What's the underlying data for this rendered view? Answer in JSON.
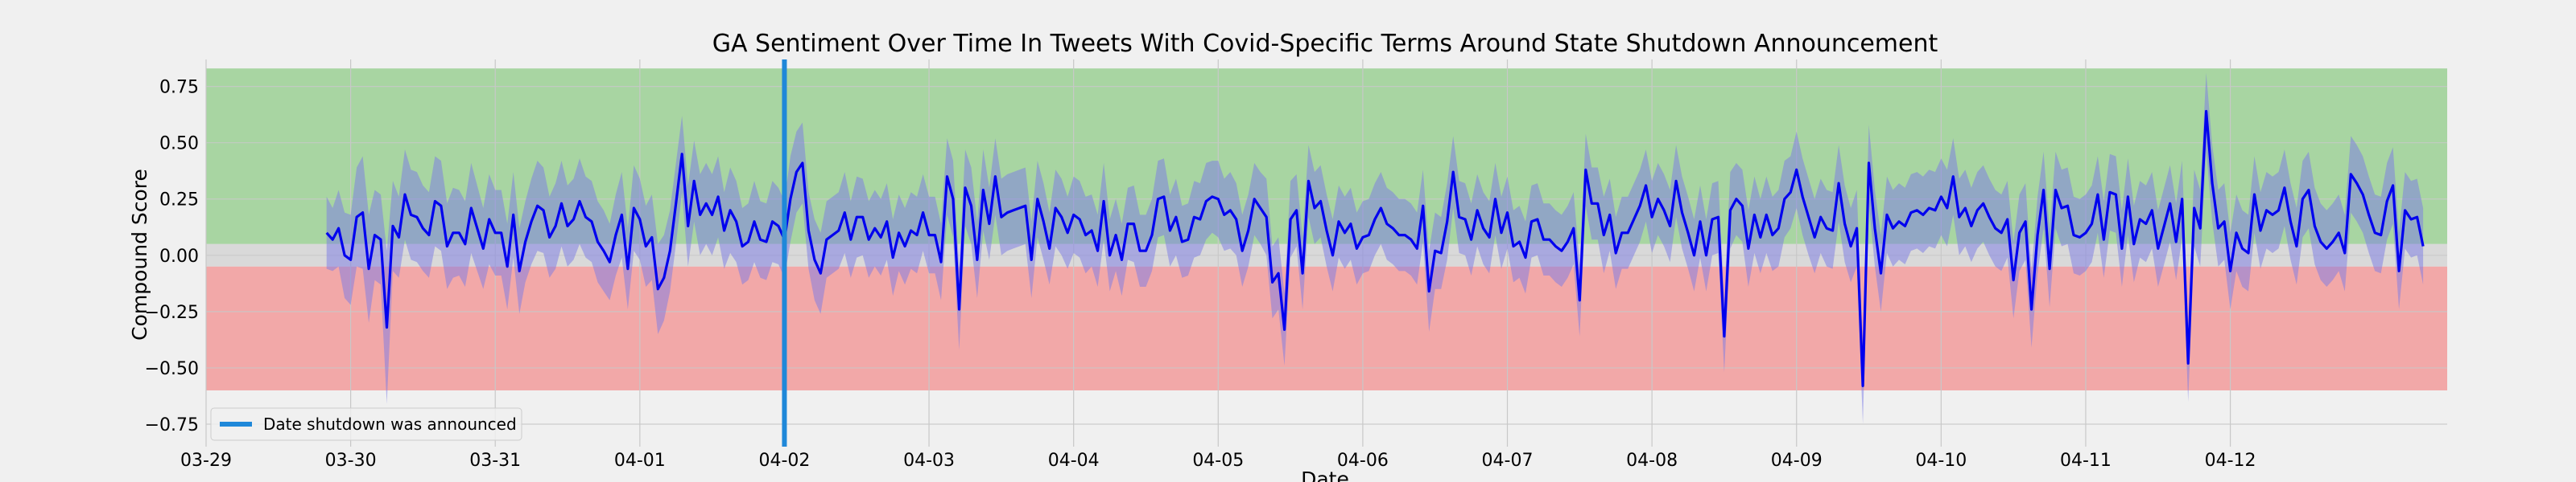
{
  "chart_data": {
    "type": "line",
    "title": "GA Sentiment Over Time In Tweets With Covid-Specific Terms Around State Shutdown Announcement",
    "xlabel": "Date",
    "ylabel": "Compound Score",
    "x_tick_labels": [
      "03-29",
      "03-30",
      "03-31",
      "04-01",
      "04-02",
      "04-03",
      "04-04",
      "04-05",
      "04-06",
      "04-07",
      "04-08",
      "04-09",
      "04-10",
      "04-11",
      "04-12"
    ],
    "y_ticks": [
      0.75,
      0.5,
      0.25,
      0.0,
      -0.25,
      -0.5,
      -0.75
    ],
    "y_tick_labels": [
      "0.75",
      "0.50",
      "0.25",
      "0.00",
      "−0.25",
      "−0.50",
      "−0.75"
    ],
    "xlim": [
      "03-29 00:00",
      "04-13 12:00"
    ],
    "ylim": [
      -0.85,
      0.87
    ],
    "grid": true,
    "bands": [
      {
        "name": "positive",
        "y_from": 0.05,
        "y_to": 0.83,
        "color": "#a8d5a2"
      },
      {
        "name": "neutral",
        "y_from": -0.05,
        "y_to": 0.05,
        "color": "#d9d9d9"
      },
      {
        "name": "negative",
        "y_from": -0.6,
        "y_to": -0.05,
        "color": "#f2a8a8"
      }
    ],
    "vline": {
      "x": "04-02 00:00",
      "label": "Date shutdown was announced",
      "color": "#1f88d9"
    },
    "legend": {
      "position": "lower-left",
      "entries": [
        "Date shutdown was announced"
      ]
    },
    "series": [
      {
        "line_color": "#0000ee",
        "band_color": "#7a7ae6",
        "x_start": "03-29 20:00",
        "x_end": "04-12 20:00",
        "interval_hours": 1,
        "values": [
          0.1,
          0.07,
          0.12,
          0.0,
          -0.02,
          0.17,
          0.19,
          -0.06,
          0.09,
          0.07,
          -0.32,
          0.13,
          0.08,
          0.27,
          0.18,
          0.17,
          0.12,
          0.09,
          0.24,
          0.22,
          0.04,
          0.1,
          0.1,
          0.05,
          0.21,
          0.12,
          0.03,
          0.16,
          0.1,
          0.1,
          -0.05,
          0.18,
          -0.07,
          0.06,
          0.15,
          0.22,
          0.2,
          0.08,
          0.13,
          0.23,
          0.13,
          0.16,
          0.24,
          0.17,
          0.15,
          0.06,
          0.02,
          -0.03,
          0.09,
          0.18,
          -0.06,
          0.21,
          0.16,
          0.04,
          0.08,
          -0.15,
          -0.1,
          0.02,
          0.23,
          0.45,
          0.13,
          0.33,
          0.18,
          0.23,
          0.18,
          0.26,
          0.11,
          0.2,
          0.15,
          0.04,
          0.06,
          0.15,
          0.07,
          0.06,
          0.15,
          0.13,
          0.07,
          0.25,
          0.37,
          0.41,
          0.11,
          -0.02,
          -0.08,
          0.07,
          0.09,
          0.11,
          0.19,
          0.07,
          0.17,
          0.17,
          0.07,
          0.12,
          0.08,
          0.15,
          -0.01,
          0.1,
          0.04,
          0.11,
          0.09,
          0.19,
          0.09,
          0.09,
          -0.03,
          0.35,
          0.25,
          -0.24,
          0.3,
          0.22,
          -0.02,
          0.29,
          0.14,
          0.35,
          0.17,
          0.19,
          0.2,
          0.21,
          0.22,
          -0.02,
          0.25,
          0.15,
          0.03,
          0.21,
          0.17,
          0.1,
          0.18,
          0.16,
          0.09,
          0.11,
          0.02,
          0.24,
          0.0,
          0.09,
          -0.02,
          0.14,
          0.14,
          0.02,
          0.02,
          0.09,
          0.25,
          0.26,
          0.11,
          0.17,
          0.06,
          0.07,
          0.17,
          0.16,
          0.24,
          0.26,
          0.25,
          0.18,
          0.2,
          0.16,
          0.02,
          0.11,
          0.25,
          0.21,
          0.17,
          -0.12,
          -0.08,
          -0.33,
          0.16,
          0.2,
          -0.08,
          0.33,
          0.21,
          0.24,
          0.11,
          0.0,
          0.15,
          0.1,
          0.14,
          0.03,
          0.08,
          0.09,
          0.16,
          0.21,
          0.14,
          0.12,
          0.09,
          0.09,
          0.07,
          0.03,
          0.22,
          -0.16,
          0.02,
          0.01,
          0.15,
          0.37,
          0.17,
          0.16,
          0.07,
          0.2,
          0.12,
          0.08,
          0.25,
          0.1,
          0.19,
          0.04,
          0.06,
          -0.01,
          0.15,
          0.16,
          0.07,
          0.07,
          0.04,
          0.02,
          0.06,
          0.12,
          -0.2,
          0.38,
          0.23,
          0.23,
          0.09,
          0.18,
          0.01,
          0.1,
          0.1,
          0.16,
          0.22,
          0.31,
          0.17,
          0.25,
          0.2,
          0.13,
          0.33,
          0.19,
          0.1,
          0.0,
          0.15,
          0.0,
          0.16,
          0.17,
          -0.36,
          0.2,
          0.25,
          0.22,
          0.03,
          0.18,
          0.08,
          0.18,
          0.09,
          0.12,
          0.25,
          0.28,
          0.38,
          0.26,
          0.17,
          0.08,
          0.17,
          0.12,
          0.11,
          0.32,
          0.14,
          0.04,
          0.12,
          -0.58,
          0.41,
          0.12,
          -0.08,
          0.18,
          0.12,
          0.15,
          0.13,
          0.19,
          0.2,
          0.18,
          0.21,
          0.2,
          0.26,
          0.21,
          0.35,
          0.17,
          0.21,
          0.13,
          0.2,
          0.23,
          0.17,
          0.12,
          0.1,
          0.16,
          -0.11,
          0.1,
          0.15,
          -0.24,
          0.09,
          0.29,
          -0.06,
          0.29,
          0.21,
          0.22,
          0.09,
          0.08,
          0.1,
          0.14,
          0.27,
          0.07,
          0.28,
          0.27,
          0.03,
          0.26,
          0.05,
          0.16,
          0.14,
          0.2,
          0.03,
          0.13,
          0.23,
          0.06,
          0.25,
          -0.48,
          0.21,
          0.12,
          0.64,
          0.32,
          0.12,
          0.15,
          -0.07,
          0.1,
          0.03,
          0.01,
          0.27,
          0.11,
          0.2,
          0.18,
          0.2,
          0.3,
          0.15,
          0.04,
          0.25,
          0.29,
          0.13,
          0.06,
          0.03,
          0.06,
          0.1,
          0.01,
          0.36,
          0.32,
          0.27,
          0.18,
          0.1,
          0.09,
          0.24,
          0.31,
          -0.07,
          0.2,
          0.16,
          0.17,
          0.04
        ],
        "upper": [
          0.26,
          0.21,
          0.29,
          0.19,
          0.18,
          0.39,
          0.44,
          0.18,
          0.29,
          0.27,
          0.02,
          0.33,
          0.26,
          0.47,
          0.38,
          0.37,
          0.31,
          0.28,
          0.44,
          0.42,
          0.23,
          0.3,
          0.29,
          0.24,
          0.41,
          0.31,
          0.21,
          0.36,
          0.29,
          0.29,
          0.14,
          0.37,
          0.12,
          0.24,
          0.34,
          0.42,
          0.39,
          0.26,
          0.32,
          0.42,
          0.31,
          0.34,
          0.43,
          0.35,
          0.33,
          0.24,
          0.2,
          0.14,
          0.27,
          0.37,
          0.12,
          0.4,
          0.34,
          0.22,
          0.27,
          0.05,
          0.09,
          0.2,
          0.41,
          0.62,
          0.31,
          0.51,
          0.36,
          0.41,
          0.36,
          0.44,
          0.28,
          0.39,
          0.33,
          0.21,
          0.23,
          0.33,
          0.24,
          0.23,
          0.33,
          0.3,
          0.24,
          0.44,
          0.55,
          0.59,
          0.28,
          0.16,
          0.1,
          0.24,
          0.26,
          0.28,
          0.37,
          0.24,
          0.35,
          0.34,
          0.24,
          0.29,
          0.25,
          0.32,
          0.16,
          0.27,
          0.21,
          0.28,
          0.26,
          0.36,
          0.26,
          0.26,
          0.14,
          0.52,
          0.42,
          -0.06,
          0.47,
          0.39,
          0.15,
          0.47,
          0.3,
          0.52,
          0.34,
          0.36,
          0.37,
          0.38,
          0.39,
          0.15,
          0.42,
          0.32,
          0.19,
          0.38,
          0.34,
          0.26,
          0.35,
          0.33,
          0.26,
          0.27,
          0.18,
          0.41,
          0.16,
          0.25,
          0.14,
          0.3,
          0.31,
          0.18,
          0.18,
          0.25,
          0.42,
          0.43,
          0.27,
          0.34,
          0.22,
          0.23,
          0.33,
          0.32,
          0.41,
          0.42,
          0.42,
          0.34,
          0.37,
          0.32,
          0.18,
          0.27,
          0.41,
          0.37,
          0.34,
          0.04,
          0.08,
          -0.17,
          0.33,
          0.36,
          0.08,
          0.49,
          0.37,
          0.4,
          0.27,
          0.16,
          0.31,
          0.26,
          0.3,
          0.19,
          0.24,
          0.25,
          0.32,
          0.37,
          0.3,
          0.28,
          0.25,
          0.25,
          0.23,
          0.19,
          0.38,
          0.02,
          0.19,
          0.17,
          0.32,
          0.53,
          0.33,
          0.32,
          0.23,
          0.36,
          0.28,
          0.24,
          0.41,
          0.26,
          0.35,
          0.2,
          0.22,
          0.15,
          0.31,
          0.32,
          0.23,
          0.23,
          0.2,
          0.18,
          0.22,
          0.28,
          -0.04,
          0.54,
          0.39,
          0.39,
          0.26,
          0.34,
          0.17,
          0.26,
          0.26,
          0.32,
          0.38,
          0.47,
          0.33,
          0.41,
          0.36,
          0.29,
          0.49,
          0.35,
          0.26,
          0.16,
          0.31,
          0.16,
          0.32,
          0.33,
          -0.2,
          0.37,
          0.41,
          0.38,
          0.2,
          0.35,
          0.25,
          0.35,
          0.26,
          0.29,
          0.42,
          0.44,
          0.55,
          0.43,
          0.34,
          0.25,
          0.34,
          0.29,
          0.28,
          0.49,
          0.31,
          0.21,
          0.29,
          -0.41,
          0.58,
          0.29,
          0.09,
          0.35,
          0.29,
          0.32,
          0.3,
          0.36,
          0.37,
          0.35,
          0.38,
          0.37,
          0.43,
          0.38,
          0.52,
          0.34,
          0.38,
          0.3,
          0.37,
          0.4,
          0.34,
          0.29,
          0.27,
          0.33,
          0.06,
          0.27,
          0.32,
          -0.07,
          0.26,
          0.46,
          0.11,
          0.46,
          0.38,
          0.39,
          0.26,
          0.25,
          0.27,
          0.31,
          0.44,
          0.24,
          0.45,
          0.44,
          0.2,
          0.43,
          0.22,
          0.33,
          0.31,
          0.37,
          0.2,
          0.3,
          0.4,
          0.23,
          0.42,
          -0.31,
          0.38,
          0.29,
          0.81,
          0.49,
          0.29,
          0.32,
          0.1,
          0.27,
          0.2,
          0.18,
          0.44,
          0.28,
          0.37,
          0.35,
          0.37,
          0.47,
          0.32,
          0.21,
          0.42,
          0.46,
          0.3,
          0.23,
          0.2,
          0.23,
          0.27,
          0.18,
          0.53,
          0.49,
          0.44,
          0.35,
          0.27,
          0.26,
          0.41,
          0.48,
          0.1,
          0.37,
          0.33,
          0.34,
          0.21
        ],
        "lower": [
          -0.06,
          -0.07,
          -0.05,
          -0.19,
          -0.22,
          -0.05,
          -0.06,
          -0.3,
          -0.11,
          -0.13,
          -0.66,
          -0.07,
          -0.1,
          0.07,
          -0.02,
          -0.03,
          -0.07,
          -0.1,
          0.04,
          0.02,
          -0.15,
          -0.1,
          -0.09,
          -0.14,
          0.01,
          -0.07,
          -0.15,
          -0.04,
          -0.09,
          -0.09,
          -0.24,
          -0.01,
          -0.26,
          -0.12,
          -0.04,
          0.02,
          0.01,
          -0.1,
          -0.06,
          0.04,
          -0.05,
          -0.02,
          0.05,
          -0.01,
          -0.03,
          -0.12,
          -0.16,
          -0.2,
          -0.09,
          -0.01,
          -0.24,
          0.02,
          -0.02,
          -0.14,
          -0.11,
          -0.35,
          -0.29,
          -0.16,
          0.05,
          0.28,
          -0.05,
          0.15,
          0.0,
          0.05,
          0.0,
          0.08,
          -0.06,
          0.01,
          -0.03,
          -0.13,
          -0.11,
          -0.03,
          -0.1,
          -0.11,
          -0.03,
          -0.04,
          -0.1,
          0.06,
          0.19,
          0.23,
          -0.06,
          -0.2,
          -0.26,
          -0.1,
          -0.08,
          -0.06,
          0.01,
          -0.1,
          -0.01,
          0.0,
          -0.1,
          -0.05,
          -0.09,
          -0.02,
          -0.18,
          -0.07,
          -0.13,
          -0.06,
          -0.08,
          0.02,
          -0.08,
          -0.08,
          -0.2,
          0.18,
          0.08,
          -0.42,
          0.13,
          0.05,
          -0.19,
          0.11,
          -0.02,
          0.18,
          0.0,
          0.02,
          0.03,
          0.04,
          0.05,
          -0.19,
          0.08,
          -0.02,
          -0.13,
          0.04,
          0.0,
          -0.06,
          0.01,
          -0.01,
          -0.08,
          -0.05,
          -0.14,
          0.07,
          -0.16,
          -0.07,
          -0.18,
          -0.02,
          -0.03,
          -0.14,
          -0.14,
          -0.07,
          0.08,
          0.09,
          -0.05,
          0.0,
          -0.1,
          -0.09,
          -0.01,
          -0.0,
          0.07,
          0.1,
          0.08,
          0.02,
          0.03,
          -0.0,
          -0.14,
          -0.05,
          0.09,
          0.05,
          0.0,
          -0.28,
          -0.24,
          -0.49,
          -0.01,
          0.04,
          -0.24,
          0.17,
          0.05,
          0.08,
          -0.05,
          -0.16,
          -0.01,
          -0.06,
          -0.02,
          -0.13,
          -0.08,
          -0.07,
          0.0,
          0.05,
          -0.02,
          -0.04,
          -0.07,
          -0.07,
          -0.09,
          -0.13,
          0.06,
          -0.34,
          -0.15,
          -0.15,
          -0.02,
          0.21,
          0.01,
          -0.0,
          -0.09,
          0.04,
          -0.04,
          -0.08,
          0.09,
          -0.06,
          0.03,
          -0.12,
          -0.1,
          -0.17,
          -0.01,
          0.0,
          -0.09,
          -0.09,
          -0.12,
          -0.14,
          -0.1,
          -0.04,
          -0.36,
          0.22,
          0.07,
          0.07,
          -0.08,
          0.02,
          -0.15,
          -0.06,
          -0.06,
          -0.0,
          0.06,
          0.15,
          0.01,
          0.09,
          0.04,
          -0.03,
          0.17,
          0.03,
          -0.06,
          -0.16,
          -0.01,
          -0.16,
          0.0,
          0.01,
          -0.52,
          0.03,
          0.09,
          0.06,
          -0.14,
          0.01,
          -0.08,
          0.01,
          -0.07,
          -0.05,
          0.08,
          0.12,
          0.21,
          0.09,
          0.0,
          -0.08,
          0.01,
          -0.05,
          -0.06,
          0.15,
          -0.03,
          -0.12,
          -0.05,
          -0.75,
          0.24,
          -0.05,
          -0.25,
          0.01,
          -0.05,
          -0.02,
          -0.04,
          0.02,
          0.03,
          0.01,
          0.04,
          0.03,
          0.09,
          0.04,
          0.18,
          0.0,
          0.04,
          -0.03,
          0.03,
          0.06,
          0.0,
          -0.05,
          -0.07,
          -0.01,
          -0.28,
          -0.07,
          -0.02,
          -0.41,
          -0.08,
          0.12,
          -0.23,
          0.12,
          0.04,
          0.05,
          -0.08,
          -0.09,
          -0.07,
          -0.03,
          0.1,
          -0.1,
          0.11,
          0.1,
          -0.14,
          0.09,
          -0.12,
          -0.01,
          -0.03,
          0.03,
          -0.14,
          -0.04,
          0.06,
          -0.11,
          0.08,
          -0.65,
          0.04,
          -0.05,
          0.47,
          0.15,
          -0.05,
          -0.02,
          -0.24,
          -0.07,
          -0.14,
          -0.16,
          0.1,
          -0.06,
          0.03,
          0.01,
          0.03,
          0.13,
          -0.02,
          -0.13,
          0.08,
          0.12,
          -0.04,
          -0.11,
          -0.14,
          -0.11,
          -0.07,
          -0.16,
          0.19,
          0.15,
          0.1,
          0.01,
          -0.07,
          -0.08,
          0.07,
          0.14,
          -0.24,
          0.03,
          -0.01,
          -0.0,
          -0.13
        ]
      }
    ]
  }
}
